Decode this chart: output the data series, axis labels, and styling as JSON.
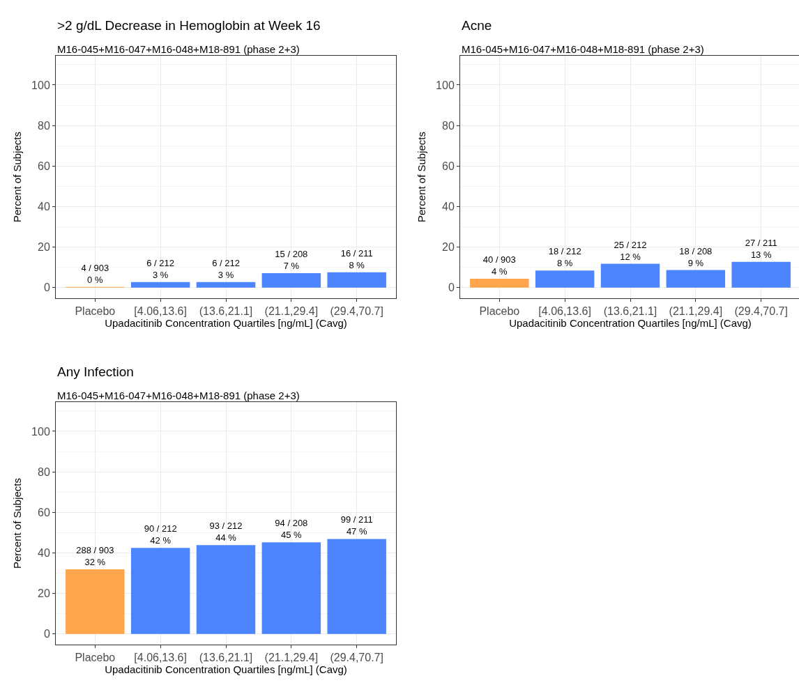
{
  "chart_data": [
    {
      "type": "bar",
      "title": ">2 g/dL Decrease in Hemoglobin at Week 16",
      "subtitle": "M16-045+M16-047+M16-048+M18-891 (phase 2+3)",
      "xlabel": "Upadacitinib Concentration Quartiles [ng/mL] (Cavg)",
      "ylabel": "Percent of Subjects",
      "categories": [
        "Placebo",
        "[4.06,13.6]",
        "(13.6,21.1]",
        "(21.1,29.4]",
        "(29.4,70.7]"
      ],
      "values": [
        0.4,
        2.8,
        2.8,
        7.2,
        7.6
      ],
      "colors": [
        "#ffa64d",
        "#4d85ff",
        "#4d85ff",
        "#4d85ff",
        "#4d85ff"
      ],
      "value_labels": [
        "4 / 903\n0 %",
        "6 / 212\n3 %",
        "6 / 212\n3 %",
        "15 / 208\n7 %",
        "16 / 211\n8 %"
      ],
      "ylim": [
        -5.2,
        114.4
      ],
      "yticks": [
        0,
        20,
        40,
        60,
        80,
        100
      ],
      "grid": true
    },
    {
      "type": "bar",
      "title": "Acne",
      "subtitle": "M16-045+M16-047+M16-048+M18-891 (phase 2+3)",
      "xlabel": "Upadacitinib Concentration Quartiles [ng/mL] (Cavg)",
      "ylabel": "Percent of Subjects",
      "categories": [
        "Placebo",
        "[4.06,13.6]",
        "(13.6,21.1]",
        "(21.1,29.4]",
        "(29.4,70.7]"
      ],
      "values": [
        4.4,
        8.5,
        11.8,
        8.7,
        12.8
      ],
      "colors": [
        "#ffa64d",
        "#4d85ff",
        "#4d85ff",
        "#4d85ff",
        "#4d85ff"
      ],
      "value_labels": [
        "40 / 903\n4 %",
        "18 / 212\n8 %",
        "25 / 212\n12 %",
        "18 / 208\n9 %",
        "27 / 211\n13 %"
      ],
      "ylim": [
        -5.2,
        114.4
      ],
      "yticks": [
        0,
        20,
        40,
        60,
        80,
        100
      ],
      "grid": true
    },
    {
      "type": "bar",
      "title": "Any Infection",
      "subtitle": "M16-045+M16-047+M16-048+M18-891 (phase 2+3)",
      "xlabel": "Upadacitinib Concentration Quartiles [ng/mL] (Cavg)",
      "ylabel": "Percent of Subjects",
      "categories": [
        "Placebo",
        "[4.06,13.6]",
        "(13.6,21.1]",
        "(21.1,29.4]",
        "(29.4,70.7]"
      ],
      "values": [
        31.9,
        42.5,
        43.9,
        45.2,
        46.9
      ],
      "colors": [
        "#ffa64d",
        "#4d85ff",
        "#4d85ff",
        "#4d85ff",
        "#4d85ff"
      ],
      "value_labels": [
        "288 / 903\n32 %",
        "90 / 212\n42 %",
        "93 / 212\n44 %",
        "94 / 208\n45 %",
        "99 / 211\n47 %"
      ],
      "ylim": [
        -5.2,
        114.4
      ],
      "yticks": [
        0,
        20,
        40,
        60,
        80,
        100
      ],
      "grid": true
    }
  ]
}
